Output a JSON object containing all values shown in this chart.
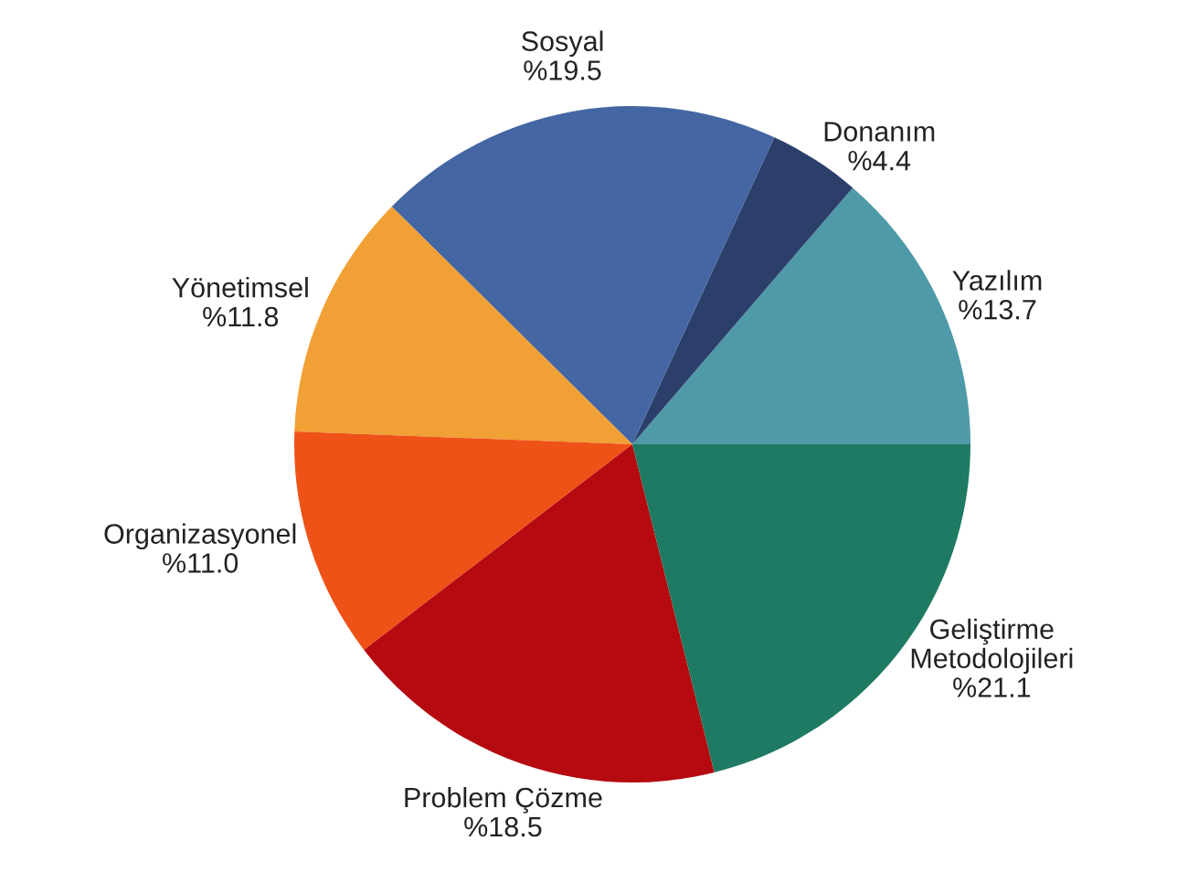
{
  "chart_data": {
    "type": "pie",
    "categories": [
      "Yazılım",
      "Donanım",
      "Sosyal",
      "Yönetimsel",
      "Organizasyonel",
      "Problem Çözme",
      "Geliştirme\nMetodolojileri"
    ],
    "values": [
      13.7,
      4.4,
      19.5,
      11.8,
      11.0,
      18.5,
      21.1
    ],
    "value_labels": [
      "%13.7",
      "%4.4",
      "%19.5",
      "%11.8",
      "%11.0",
      "%18.5",
      "%21.1"
    ],
    "colors": [
      "#4f9aa8",
      "#2c3f6b",
      "#4466a3",
      "#f0a035",
      "#ee5217",
      "#b50a10",
      "#1f7a63"
    ]
  }
}
